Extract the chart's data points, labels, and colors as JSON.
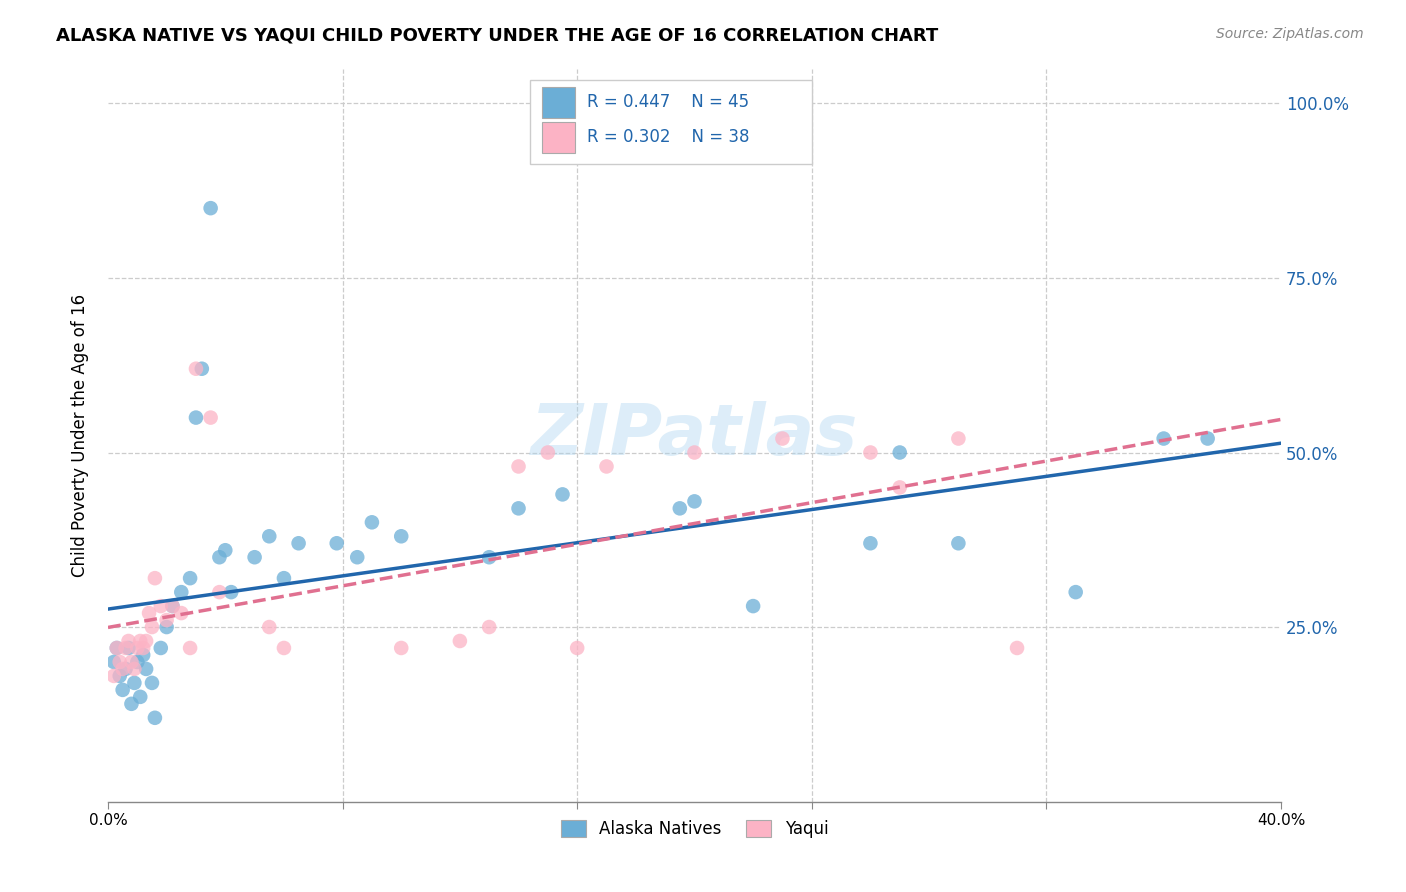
{
  "title": "ALASKA NATIVE VS YAQUI CHILD POVERTY UNDER THE AGE OF 16 CORRELATION CHART",
  "source": "Source: ZipAtlas.com",
  "ylabel": "Child Poverty Under the Age of 16",
  "xlim": [
    0.0,
    0.4
  ],
  "ylim": [
    0.0,
    1.05
  ],
  "watermark": "ZIPatlas",
  "alaska_color": "#6baed6",
  "yaqui_color": "#fcb3c5",
  "line_alaska_color": "#2166ac",
  "line_yaqui_color": "#e07090",
  "alaska_points_x": [
    0.002,
    0.003,
    0.004,
    0.005,
    0.006,
    0.007,
    0.008,
    0.009,
    0.01,
    0.011,
    0.012,
    0.013,
    0.015,
    0.016,
    0.018,
    0.02,
    0.022,
    0.025,
    0.028,
    0.03,
    0.032,
    0.035,
    0.038,
    0.04,
    0.042,
    0.05,
    0.055,
    0.06,
    0.065,
    0.078,
    0.085,
    0.09,
    0.1,
    0.13,
    0.14,
    0.155,
    0.195,
    0.2,
    0.22,
    0.26,
    0.27,
    0.29,
    0.33,
    0.36,
    0.375
  ],
  "alaska_points_y": [
    0.2,
    0.22,
    0.18,
    0.16,
    0.19,
    0.22,
    0.14,
    0.17,
    0.2,
    0.15,
    0.21,
    0.19,
    0.17,
    0.12,
    0.22,
    0.25,
    0.28,
    0.3,
    0.32,
    0.55,
    0.62,
    0.85,
    0.35,
    0.36,
    0.3,
    0.35,
    0.38,
    0.32,
    0.37,
    0.37,
    0.35,
    0.4,
    0.38,
    0.35,
    0.42,
    0.44,
    0.42,
    0.43,
    0.28,
    0.37,
    0.5,
    0.37,
    0.3,
    0.52,
    0.52
  ],
  "yaqui_points_x": [
    0.002,
    0.003,
    0.004,
    0.005,
    0.006,
    0.007,
    0.008,
    0.009,
    0.01,
    0.011,
    0.012,
    0.013,
    0.014,
    0.015,
    0.016,
    0.018,
    0.02,
    0.022,
    0.025,
    0.028,
    0.03,
    0.035,
    0.038,
    0.055,
    0.06,
    0.1,
    0.12,
    0.13,
    0.14,
    0.15,
    0.16,
    0.17,
    0.2,
    0.23,
    0.26,
    0.27,
    0.29,
    0.31
  ],
  "yaqui_points_y": [
    0.18,
    0.22,
    0.2,
    0.19,
    0.22,
    0.23,
    0.2,
    0.19,
    0.22,
    0.23,
    0.22,
    0.23,
    0.27,
    0.25,
    0.32,
    0.28,
    0.26,
    0.28,
    0.27,
    0.22,
    0.62,
    0.55,
    0.3,
    0.25,
    0.22,
    0.22,
    0.23,
    0.25,
    0.48,
    0.5,
    0.22,
    0.48,
    0.5,
    0.52,
    0.5,
    0.45,
    0.52,
    0.22
  ]
}
